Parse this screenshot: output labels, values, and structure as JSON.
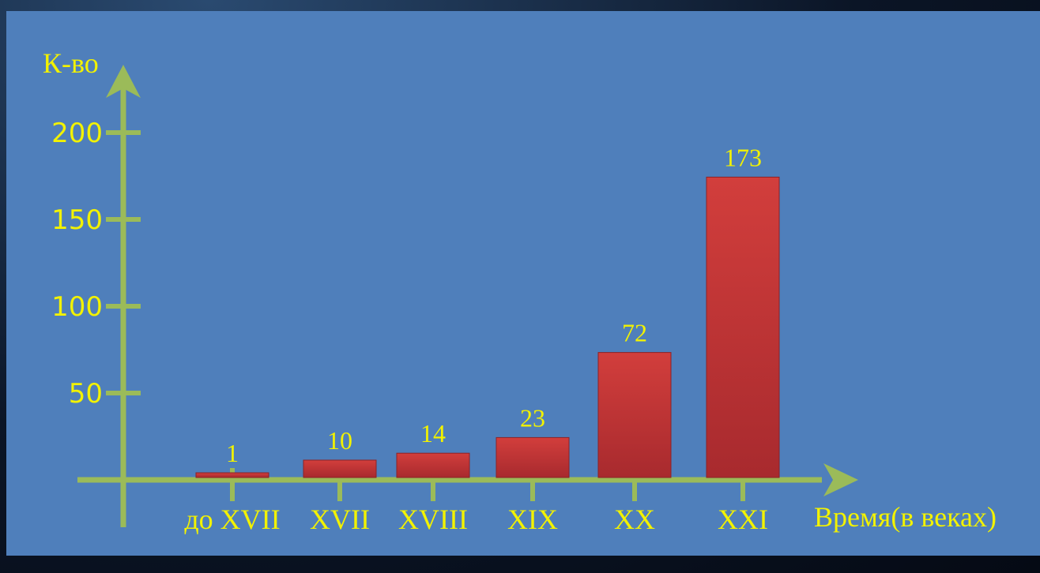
{
  "chart_data": {
    "type": "bar",
    "categories": [
      "до XVII",
      "XVII",
      "XVIII",
      "XIX",
      "XX",
      "XXI"
    ],
    "values": [
      1,
      10,
      14,
      23,
      72,
      173
    ],
    "data_labels": [
      "1",
      "10",
      "14",
      "23",
      "72",
      "173"
    ],
    "title": "",
    "xlabel": "Время(в веках)",
    "ylabel": "К-во",
    "yticks": [
      50,
      100,
      150,
      200
    ],
    "ylim": [
      0,
      200
    ],
    "grid": false,
    "legend": "none",
    "colors": {
      "background": "#4f7fbb",
      "bar": "#c0353a",
      "axis": "#9bbb59",
      "text": "#f2f200"
    }
  }
}
